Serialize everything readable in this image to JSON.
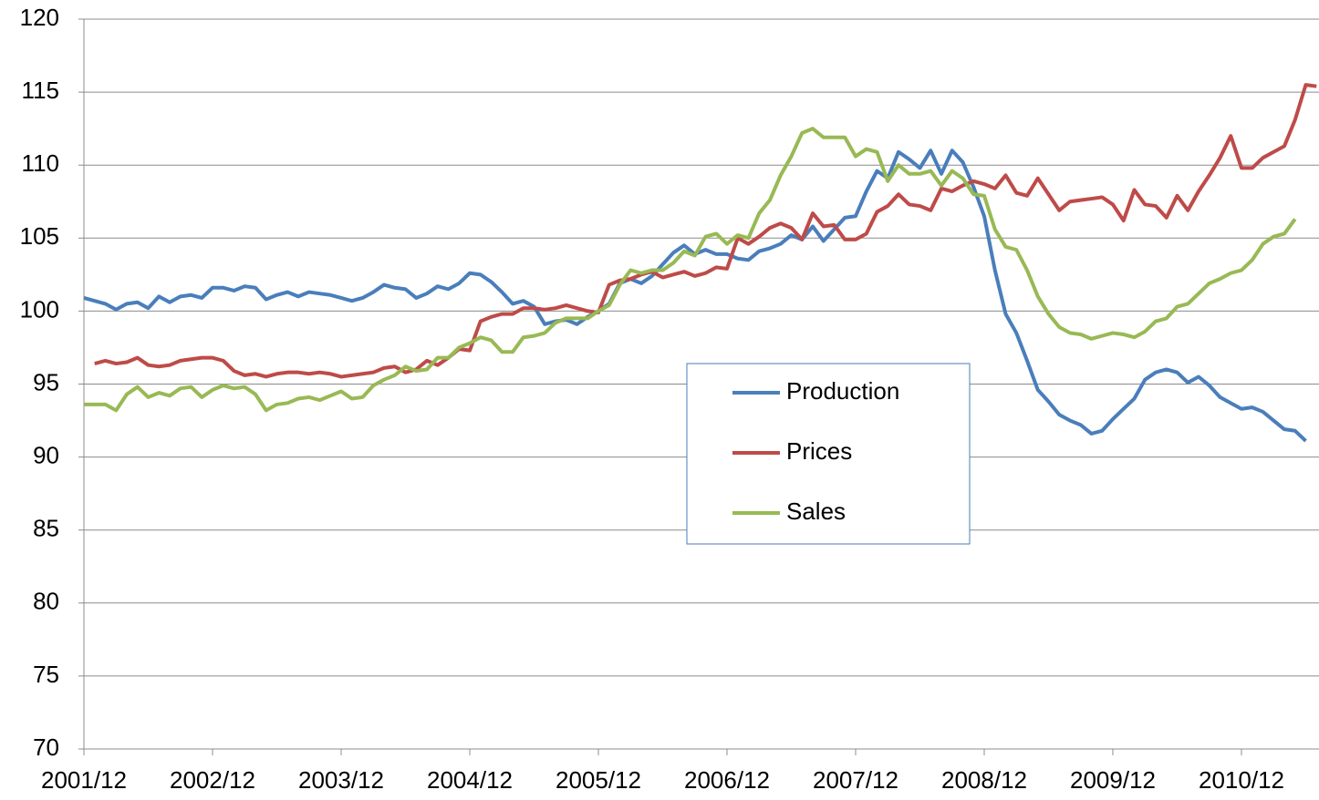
{
  "chart_data": {
    "type": "line",
    "categories": [
      "2001/12",
      null,
      null,
      null,
      null,
      null,
      null,
      null,
      null,
      null,
      null,
      null,
      "2002/12",
      null,
      null,
      null,
      null,
      null,
      null,
      null,
      null,
      null,
      null,
      null,
      "2003/12",
      null,
      null,
      null,
      null,
      null,
      null,
      null,
      null,
      null,
      null,
      null,
      "2004/12",
      null,
      null,
      null,
      null,
      null,
      null,
      null,
      null,
      null,
      null,
      null,
      "2005/12",
      null,
      null,
      null,
      null,
      null,
      null,
      null,
      null,
      null,
      null,
      null,
      "2006/12",
      null,
      null,
      null,
      null,
      null,
      null,
      null,
      null,
      null,
      null,
      null,
      "2007/12",
      null,
      null,
      null,
      null,
      null,
      null,
      null,
      null,
      null,
      null,
      null,
      "2008/12",
      null,
      null,
      null,
      null,
      null,
      null,
      null,
      null,
      null,
      null,
      null,
      "2009/12",
      null,
      null,
      null,
      null,
      null,
      null,
      null,
      null,
      null,
      null,
      null,
      "2010/12",
      null,
      null,
      null,
      null,
      null,
      null,
      null
    ],
    "series": [
      {
        "name": "Production",
        "color": "#4a7ebb",
        "values": [
          100.9,
          100.7,
          100.5,
          100.1,
          100.5,
          100.6,
          100.2,
          101.0,
          100.6,
          101.0,
          101.1,
          100.9,
          101.6,
          101.6,
          101.4,
          101.7,
          101.6,
          100.8,
          101.1,
          101.3,
          101.0,
          101.3,
          101.2,
          101.1,
          100.9,
          100.7,
          100.9,
          101.3,
          101.8,
          101.6,
          101.5,
          100.9,
          101.2,
          101.7,
          101.5,
          101.9,
          102.6,
          102.5,
          102.0,
          101.3,
          100.5,
          100.7,
          100.3,
          99.1,
          99.3,
          99.4,
          99.1,
          99.6,
          100.0,
          100.5,
          101.9,
          102.2,
          101.9,
          102.4,
          103.2,
          104.0,
          104.5,
          103.9,
          104.2,
          103.9,
          103.9,
          103.6,
          103.5,
          104.1,
          104.3,
          104.6,
          105.2,
          104.9,
          105.8,
          104.8,
          105.6,
          106.4,
          106.5,
          108.2,
          109.6,
          109.1,
          110.9,
          110.4,
          109.8,
          111.0,
          109.4,
          111.0,
          110.2,
          108.5,
          106.5,
          102.8,
          99.8,
          98.5,
          96.6,
          94.6,
          93.8,
          92.9,
          92.5,
          92.2,
          91.6,
          91.8,
          92.6,
          93.3,
          94.0,
          95.3,
          95.8,
          96.0,
          95.8,
          95.1,
          95.5,
          94.9,
          94.1,
          93.7,
          93.3,
          93.4,
          93.1,
          92.5,
          91.9,
          91.8,
          91.1,
          null
        ]
      },
      {
        "name": "Prices",
        "color": "#be4b48",
        "values": [
          null,
          96.4,
          96.6,
          96.4,
          96.5,
          96.8,
          96.3,
          96.2,
          96.3,
          96.6,
          96.7,
          96.8,
          96.8,
          96.6,
          95.9,
          95.6,
          95.7,
          95.5,
          95.7,
          95.8,
          95.8,
          95.7,
          95.8,
          95.7,
          95.5,
          95.6,
          95.7,
          95.8,
          96.1,
          96.2,
          95.8,
          96.0,
          96.6,
          96.3,
          96.8,
          97.4,
          97.3,
          99.3,
          99.6,
          99.8,
          99.8,
          100.2,
          100.2,
          100.1,
          100.2,
          100.4,
          100.2,
          100.0,
          99.9,
          101.8,
          102.1,
          102.2,
          102.5,
          102.7,
          102.3,
          102.5,
          102.7,
          102.4,
          102.6,
          103.0,
          102.9,
          105.0,
          104.6,
          105.1,
          105.7,
          106.0,
          105.7,
          104.9,
          106.7,
          105.8,
          105.9,
          104.9,
          104.9,
          105.3,
          106.8,
          107.2,
          108.0,
          107.3,
          107.2,
          106.9,
          108.4,
          108.2,
          108.6,
          108.9,
          108.7,
          108.4,
          109.3,
          108.1,
          107.9,
          109.1,
          108.0,
          106.9,
          107.5,
          107.6,
          107.7,
          107.8,
          107.3,
          106.2,
          108.3,
          107.3,
          107.2,
          106.4,
          107.9,
          106.9,
          108.2,
          109.3,
          110.5,
          112.0,
          109.8,
          109.8,
          110.5,
          110.9,
          111.3,
          113.1,
          115.5,
          115.4
        ]
      },
      {
        "name": "Sales",
        "color": "#98b954",
        "values": [
          93.6,
          93.6,
          93.6,
          93.2,
          94.3,
          94.8,
          94.1,
          94.4,
          94.2,
          94.7,
          94.8,
          94.1,
          94.6,
          94.9,
          94.7,
          94.8,
          94.3,
          93.2,
          93.6,
          93.7,
          94.0,
          94.1,
          93.9,
          94.2,
          94.5,
          94.0,
          94.1,
          94.9,
          95.3,
          95.6,
          96.2,
          95.9,
          96.0,
          96.8,
          96.8,
          97.5,
          97.8,
          98.2,
          98.0,
          97.2,
          97.2,
          98.2,
          98.3,
          98.5,
          99.2,
          99.5,
          99.5,
          99.5,
          100.0,
          100.4,
          101.8,
          102.8,
          102.6,
          102.8,
          102.8,
          103.3,
          104.1,
          103.8,
          105.1,
          105.3,
          104.6,
          105.2,
          105.0,
          106.7,
          107.6,
          109.3,
          110.6,
          112.2,
          112.5,
          111.9,
          111.9,
          111.9,
          110.6,
          111.1,
          110.9,
          108.9,
          110.0,
          109.4,
          109.4,
          109.6,
          108.6,
          109.6,
          109.1,
          108.0,
          107.9,
          105.6,
          104.4,
          104.2,
          102.8,
          101.0,
          99.8,
          98.9,
          98.5,
          98.4,
          98.1,
          98.3,
          98.5,
          98.4,
          98.2,
          98.6,
          99.3,
          99.5,
          100.3,
          100.5,
          101.2,
          101.9,
          102.2,
          102.6,
          102.8,
          103.5,
          104.6,
          105.1,
          105.3,
          106.3,
          null,
          null
        ]
      }
    ],
    "ylim": [
      70,
      120
    ],
    "yticks": [
      70,
      75,
      80,
      85,
      90,
      95,
      100,
      105,
      110,
      115,
      120
    ],
    "grid": true
  }
}
